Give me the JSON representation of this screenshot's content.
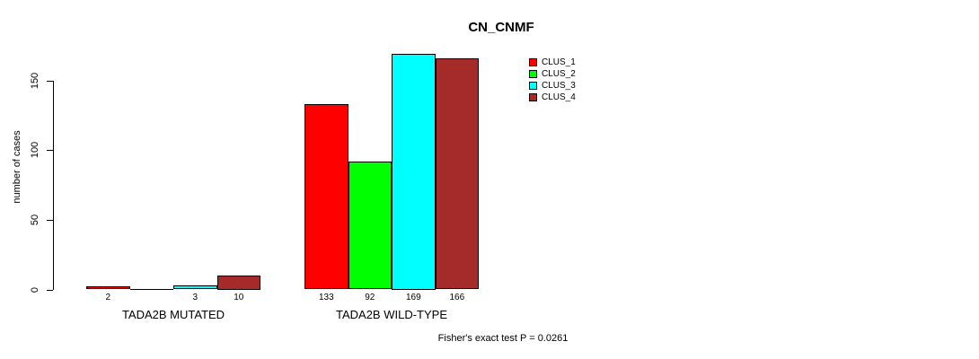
{
  "chart_data": {
    "type": "bar",
    "title": "CN_CNMF",
    "ylabel": "number of cases",
    "xlabel": "",
    "yticks": [
      0,
      50,
      100,
      150
    ],
    "ylim": [
      0,
      170
    ],
    "grid": false,
    "legend_position": "top-right",
    "categories": [
      "TADA2B MUTATED",
      "TADA2B WILD-TYPE"
    ],
    "groups": [
      {
        "label": "TADA2B MUTATED",
        "values": [
          2,
          0,
          3,
          10
        ],
        "bar_labels": [
          "2",
          "",
          "3",
          "10"
        ]
      },
      {
        "label": "TADA2B WILD-TYPE",
        "values": [
          133,
          92,
          169,
          166
        ],
        "bar_labels": [
          "133",
          "92",
          "169",
          "166"
        ]
      }
    ],
    "series": [
      {
        "name": "CLUS_1",
        "color": "#FF0000"
      },
      {
        "name": "CLUS_2",
        "color": "#00FF00"
      },
      {
        "name": "CLUS_3",
        "color": "#00FFFF"
      },
      {
        "name": "CLUS_4",
        "color": "#A52A2A"
      }
    ],
    "annotation": "Fisher's exact test P = 0.0261"
  }
}
